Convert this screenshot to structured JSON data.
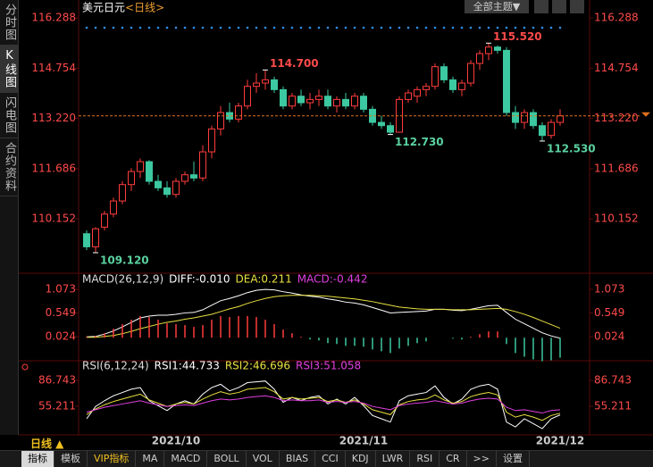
{
  "sidebar": [
    "分时图",
    "K线图",
    "闪电图",
    "合约资料"
  ],
  "theme_button": "全部主题▼",
  "period_button": "日线 ▲",
  "toolbar": [
    "指标",
    "模板",
    "VIP指标",
    "MA",
    "MACD",
    "BOLL",
    "VOL",
    "BIAS",
    "CCI",
    "KDJ",
    "LWR",
    "RSI",
    "CR",
    ">>",
    "设置"
  ],
  "chart_data": [
    {
      "type": "candlestick",
      "title": "美元日元",
      "subtitle": "<日线>",
      "up_color": "#ff3c3c",
      "down_color": "#3cc8a0",
      "categories": [
        null,
        null,
        null,
        null,
        null,
        null,
        null,
        null,
        null,
        null,
        "2021/10",
        null,
        null,
        null,
        null,
        null,
        null,
        null,
        null,
        null,
        null,
        null,
        null,
        null,
        null,
        null,
        null,
        null,
        null,
        null,
        null,
        "2021/11",
        null,
        null,
        null,
        null,
        null,
        null,
        null,
        null,
        null,
        null,
        null,
        null,
        null,
        null,
        null,
        null,
        null,
        null,
        null,
        null,
        null,
        "2021/12"
      ],
      "ohlc": [
        [
          109.7,
          109.8,
          109.2,
          109.3
        ],
        [
          109.3,
          109.9,
          109.12,
          109.85
        ],
        [
          109.9,
          110.4,
          109.8,
          110.3
        ],
        [
          110.3,
          110.8,
          110.2,
          110.7
        ],
        [
          110.7,
          111.3,
          110.6,
          111.2
        ],
        [
          111.2,
          111.7,
          111.0,
          111.6
        ],
        [
          111.6,
          112.0,
          111.4,
          111.9
        ],
        [
          111.9,
          111.95,
          111.2,
          111.3
        ],
        [
          111.3,
          111.5,
          111.0,
          111.1
        ],
        [
          111.1,
          111.3,
          110.8,
          110.9
        ],
        [
          110.9,
          111.4,
          110.8,
          111.3
        ],
        [
          111.3,
          111.6,
          111.2,
          111.5
        ],
        [
          111.5,
          111.9,
          111.3,
          111.4
        ],
        [
          111.4,
          112.4,
          111.3,
          112.2
        ],
        [
          112.2,
          113.0,
          112.0,
          112.9
        ],
        [
          112.9,
          113.6,
          112.7,
          113.4
        ],
        [
          113.4,
          113.7,
          113.1,
          113.2
        ],
        [
          113.2,
          113.7,
          113.1,
          113.6
        ],
        [
          113.6,
          114.4,
          113.5,
          114.2
        ],
        [
          114.2,
          114.6,
          114.0,
          114.3
        ],
        [
          114.3,
          114.7,
          114.1,
          114.4
        ],
        [
          114.4,
          114.5,
          114.0,
          114.1
        ],
        [
          114.1,
          114.2,
          113.5,
          113.6
        ],
        [
          113.6,
          114.0,
          113.5,
          113.9
        ],
        [
          113.9,
          114.1,
          113.6,
          113.7
        ],
        [
          113.7,
          114.0,
          113.5,
          113.8
        ],
        [
          113.8,
          114.1,
          113.6,
          113.9
        ],
        [
          113.9,
          114.1,
          113.5,
          113.6
        ],
        [
          113.6,
          113.9,
          113.4,
          113.8
        ],
        [
          113.8,
          114.0,
          113.5,
          113.6
        ],
        [
          113.6,
          114.0,
          113.5,
          113.9
        ],
        [
          113.9,
          114.0,
          113.4,
          113.5
        ],
        [
          113.5,
          113.6,
          113.0,
          113.1
        ],
        [
          113.1,
          113.3,
          112.9,
          113.0
        ],
        [
          113.0,
          113.1,
          112.73,
          112.8
        ],
        [
          112.8,
          113.9,
          112.8,
          113.8
        ],
        [
          113.8,
          114.1,
          113.7,
          114.0
        ],
        [
          113.9,
          114.2,
          113.7,
          114.1
        ],
        [
          114.1,
          114.3,
          113.9,
          114.2
        ],
        [
          114.2,
          114.9,
          114.1,
          114.8
        ],
        [
          114.8,
          114.9,
          114.3,
          114.4
        ],
        [
          114.4,
          114.5,
          114.0,
          114.1
        ],
        [
          114.1,
          114.4,
          113.9,
          114.3
        ],
        [
          114.3,
          115.0,
          114.2,
          114.9
        ],
        [
          114.9,
          115.3,
          114.7,
          115.2
        ],
        [
          115.2,
          115.52,
          115.0,
          115.4
        ],
        [
          115.4,
          115.45,
          115.2,
          115.3
        ],
        [
          115.3,
          115.4,
          113.3,
          113.4
        ],
        [
          113.4,
          113.6,
          112.9,
          113.1
        ],
        [
          113.1,
          113.5,
          112.9,
          113.4
        ],
        [
          113.4,
          113.5,
          112.9,
          113.0
        ],
        [
          113.0,
          113.1,
          112.53,
          112.7
        ],
        [
          112.7,
          113.2,
          112.6,
          113.1
        ],
        [
          113.1,
          113.5,
          113.0,
          113.3
        ]
      ],
      "ylim": [
        108.52,
        116.51
      ],
      "yticks": [
        110.152,
        111.686,
        {
          "value": 113.22,
          "label": "113.220"
        },
        114.754,
        116.288
      ],
      "annotations": [
        {
          "value": 109.12,
          "label": "109.120"
        },
        {
          "value": 114.7,
          "label": "114.700"
        },
        {
          "value": 112.73,
          "label": "112.730"
        },
        {
          "value": 115.52,
          "label": "115.520"
        },
        {
          "value": 112.53,
          "label": "112.530"
        }
      ],
      "grid": false
    },
    {
      "type": "line",
      "title": "MACD(26,12,9)",
      "ylim": [
        -0.53,
        1.39
      ],
      "yticks": [
        0.024,
        0.549,
        1.073
      ],
      "series": [
        {
          "label": "DIFF:-0.010",
          "color": "#ffffff",
          "type": "line",
          "values": [
            0.02,
            0.03,
            0.08,
            0.15,
            0.24,
            0.34,
            0.44,
            0.48,
            0.5,
            0.5,
            0.52,
            0.55,
            0.56,
            0.62,
            0.72,
            0.82,
            0.87,
            0.93,
            1.0,
            1.05,
            1.07,
            1.06,
            1.02,
            0.99,
            0.95,
            0.92,
            0.9,
            0.86,
            0.83,
            0.79,
            0.77,
            0.73,
            0.67,
            0.61,
            0.55,
            0.56,
            0.57,
            0.58,
            0.59,
            0.63,
            0.63,
            0.61,
            0.6,
            0.63,
            0.67,
            0.71,
            0.72,
            0.56,
            0.41,
            0.31,
            0.21,
            0.11,
            0.04,
            -0.01
          ]
        },
        {
          "label": "DEA:0.211",
          "color": "#e8e040",
          "type": "line",
          "values": [
            0.01,
            0.01,
            0.03,
            0.05,
            0.09,
            0.14,
            0.2,
            0.25,
            0.3,
            0.34,
            0.37,
            0.41,
            0.44,
            0.48,
            0.52,
            0.58,
            0.64,
            0.69,
            0.76,
            0.82,
            0.87,
            0.91,
            0.93,
            0.94,
            0.94,
            0.94,
            0.93,
            0.92,
            0.9,
            0.88,
            0.86,
            0.83,
            0.8,
            0.76,
            0.72,
            0.68,
            0.66,
            0.64,
            0.63,
            0.63,
            0.63,
            0.62,
            0.62,
            0.62,
            0.63,
            0.64,
            0.65,
            0.63,
            0.58,
            0.52,
            0.45,
            0.37,
            0.29,
            0.211
          ]
        },
        {
          "label": "MACD:-0.442",
          "color": "#e040e0",
          "type": "bar",
          "up_color": "#ff3c3c",
          "down_color": "#3cc8a0",
          "values": [
            0.02,
            0.04,
            0.1,
            0.2,
            0.3,
            0.4,
            0.48,
            0.46,
            0.4,
            0.32,
            0.3,
            0.28,
            0.24,
            0.28,
            0.4,
            0.48,
            0.46,
            0.48,
            0.48,
            0.46,
            0.4,
            0.3,
            0.18,
            0.1,
            0.02,
            -0.04,
            -0.06,
            -0.12,
            -0.14,
            -0.18,
            -0.18,
            -0.2,
            -0.26,
            -0.3,
            -0.34,
            -0.24,
            -0.18,
            -0.12,
            -0.08,
            0.0,
            0.0,
            -0.02,
            -0.04,
            0.02,
            0.08,
            0.14,
            0.14,
            -0.14,
            -0.34,
            -0.42,
            -0.48,
            -0.52,
            -0.5,
            -0.442
          ]
        }
      ]
    },
    {
      "type": "line",
      "title": "RSI(6,12,24)",
      "ylim": [
        20.4,
        109.6
      ],
      "yticks": [
        55.211,
        86.743
      ],
      "series": [
        {
          "label": "RSI1:44.733",
          "color": "#ffffff",
          "type": "line",
          "values": [
            40,
            55,
            62,
            68,
            72,
            76,
            78,
            62,
            56,
            50,
            58,
            62,
            58,
            70,
            78,
            82,
            74,
            78,
            84,
            85,
            86,
            76,
            60,
            66,
            62,
            66,
            68,
            58,
            64,
            58,
            66,
            56,
            44,
            40,
            36,
            62,
            68,
            70,
            72,
            80,
            66,
            58,
            64,
            76,
            80,
            82,
            76,
            36,
            30,
            40,
            34,
            28,
            40,
            44.733
          ]
        },
        {
          "label": "RSI2:46.696",
          "color": "#e8e040",
          "type": "line",
          "values": [
            45,
            52,
            57,
            61,
            64,
            67,
            70,
            63,
            59,
            55,
            58,
            60,
            58,
            64,
            69,
            73,
            70,
            72,
            76,
            77,
            78,
            73,
            64,
            66,
            64,
            65,
            66,
            61,
            63,
            60,
            63,
            58,
            51,
            48,
            45,
            57,
            61,
            63,
            64,
            69,
            63,
            59,
            61,
            67,
            70,
            72,
            69,
            48,
            42,
            45,
            42,
            38,
            44,
            46.696
          ]
        },
        {
          "label": "RSI3:51.058",
          "color": "#e040e0",
          "type": "line",
          "values": [
            48,
            51,
            54,
            56,
            58,
            60,
            62,
            59,
            57,
            55,
            56,
            57,
            56,
            59,
            62,
            64,
            63,
            64,
            66,
            67,
            68,
            66,
            62,
            63,
            62,
            62,
            63,
            60,
            61,
            60,
            61,
            59,
            55,
            53,
            51,
            56,
            58,
            59,
            60,
            62,
            60,
            58,
            59,
            62,
            64,
            65,
            64,
            54,
            50,
            51,
            49,
            47,
            50,
            51.058
          ]
        }
      ]
    }
  ]
}
